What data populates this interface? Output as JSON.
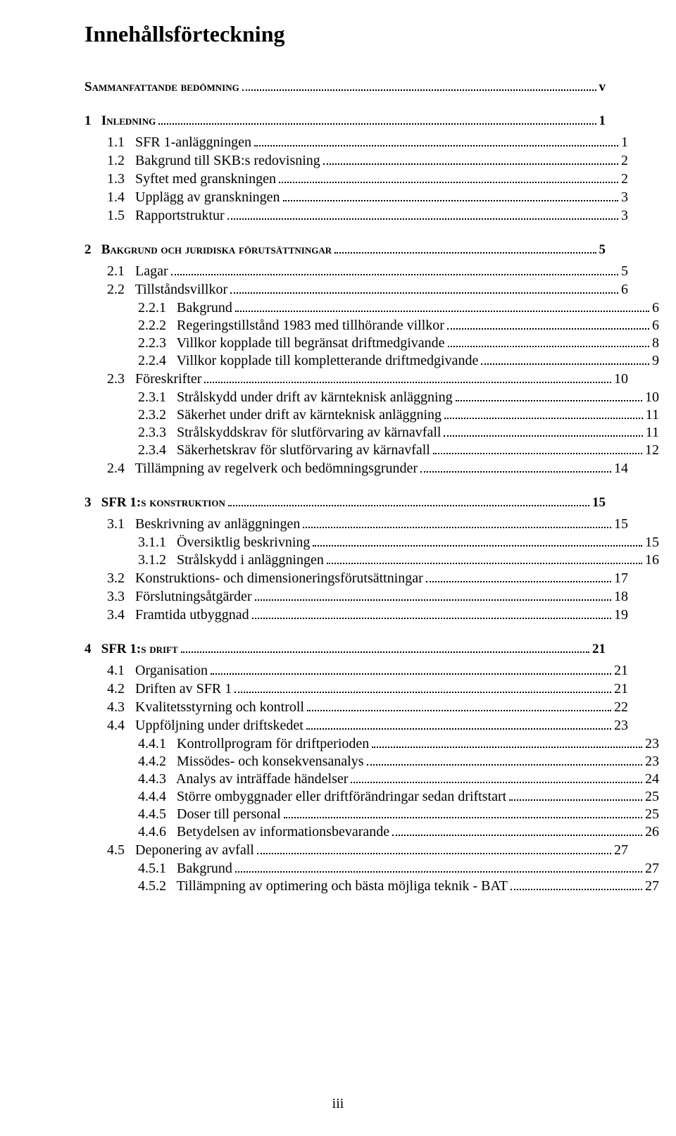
{
  "title": "Innehållsförteckning",
  "page_number_label": "iii",
  "font": {
    "family": "Times New Roman",
    "title_size_pt": 24,
    "lvl0_size_pt": 14,
    "lvl1_size_pt": 15,
    "lvl2_size_pt": 15
  },
  "colors": {
    "text": "#000000",
    "background": "#ffffff",
    "leader": "#000000"
  },
  "entries": [
    {
      "level": 0,
      "number": "",
      "text": "Sammanfattande bedömning",
      "page": "v"
    },
    {
      "level": 0,
      "number": "1",
      "text": "Inledning",
      "page": "1"
    },
    {
      "level": 1,
      "number": "1.1",
      "text": "SFR 1-anläggningen",
      "page": "1"
    },
    {
      "level": 1,
      "number": "1.2",
      "text": "Bakgrund till SKB:s redovisning",
      "page": "2"
    },
    {
      "level": 1,
      "number": "1.3",
      "text": "Syftet med granskningen",
      "page": "2"
    },
    {
      "level": 1,
      "number": "1.4",
      "text": "Upplägg av granskningen",
      "page": "3"
    },
    {
      "level": 1,
      "number": "1.5",
      "text": "Rapportstruktur",
      "page": "3"
    },
    {
      "level": 0,
      "number": "2",
      "text": "Bakgrund och juridiska förutsättningar",
      "page": "5"
    },
    {
      "level": 1,
      "number": "2.1",
      "text": "Lagar",
      "page": "5"
    },
    {
      "level": 1,
      "number": "2.2",
      "text": "Tillståndsvillkor",
      "page": "6"
    },
    {
      "level": 2,
      "number": "2.2.1",
      "text": "Bakgrund",
      "page": "6"
    },
    {
      "level": 2,
      "number": "2.2.2",
      "text": "Regeringstillstånd 1983 med tillhörande villkor",
      "page": "6"
    },
    {
      "level": 2,
      "number": "2.2.3",
      "text": "Villkor kopplade till begränsat driftmedgivande",
      "page": "8"
    },
    {
      "level": 2,
      "number": "2.2.4",
      "text": "Villkor kopplade till kompletterande driftmedgivande",
      "page": "9"
    },
    {
      "level": 1,
      "number": "2.3",
      "text": "Föreskrifter",
      "page": "10"
    },
    {
      "level": 2,
      "number": "2.3.1",
      "text": "Strålskydd under drift av kärnteknisk anläggning",
      "page": "10"
    },
    {
      "level": 2,
      "number": "2.3.2",
      "text": "Säkerhet under drift av kärnteknisk anläggning",
      "page": "11"
    },
    {
      "level": 2,
      "number": "2.3.3",
      "text": "Strålskyddskrav för slutförvaring av kärnavfall",
      "page": "11"
    },
    {
      "level": 2,
      "number": "2.3.4",
      "text": "Säkerhetskrav för slutförvaring av kärnavfall",
      "page": "12"
    },
    {
      "level": 1,
      "number": "2.4",
      "text": "Tillämpning av regelverk och bedömningsgrunder",
      "page": "14"
    },
    {
      "level": 0,
      "number": "3",
      "text": "SFR 1:s konstruktion",
      "page": "15"
    },
    {
      "level": 1,
      "number": "3.1",
      "text": "Beskrivning av anläggningen",
      "page": "15"
    },
    {
      "level": 2,
      "number": "3.1.1",
      "text": "Översiktlig beskrivning",
      "page": "15"
    },
    {
      "level": 2,
      "number": "3.1.2",
      "text": "Strålskydd i anläggningen",
      "page": "16"
    },
    {
      "level": 1,
      "number": "3.2",
      "text": "Konstruktions- och dimensioneringsförutsättningar",
      "page": "17"
    },
    {
      "level": 1,
      "number": "3.3",
      "text": "Förslutningsåtgärder",
      "page": "18"
    },
    {
      "level": 1,
      "number": "3.4",
      "text": "Framtida utbyggnad",
      "page": "19"
    },
    {
      "level": 0,
      "number": "4",
      "text": "SFR 1:s drift",
      "page": "21"
    },
    {
      "level": 1,
      "number": "4.1",
      "text": "Organisation",
      "page": "21"
    },
    {
      "level": 1,
      "number": "4.2",
      "text": "Driften av SFR 1",
      "page": "21"
    },
    {
      "level": 1,
      "number": "4.3",
      "text": "Kvalitetsstyrning och kontroll",
      "page": "22"
    },
    {
      "level": 1,
      "number": "4.4",
      "text": "Uppföljning under driftskedet",
      "page": "23"
    },
    {
      "level": 2,
      "number": "4.4.1",
      "text": "Kontrollprogram för driftperioden",
      "page": "23"
    },
    {
      "level": 2,
      "number": "4.4.2",
      "text": "Missödes- och konsekvensanalys",
      "page": "23"
    },
    {
      "level": 2,
      "number": "4.4.3",
      "text": "Analys av inträffade händelser",
      "page": "24"
    },
    {
      "level": 2,
      "number": "4.4.4",
      "text": "Större ombyggnader eller driftförändringar sedan driftstart",
      "page": "25"
    },
    {
      "level": 2,
      "number": "4.4.5",
      "text": "Doser till personal",
      "page": "25"
    },
    {
      "level": 2,
      "number": "4.4.6",
      "text": "Betydelsen av informationsbevarande",
      "page": "26"
    },
    {
      "level": 1,
      "number": "4.5",
      "text": "Deponering av avfall",
      "page": "27"
    },
    {
      "level": 2,
      "number": "4.5.1",
      "text": "Bakgrund",
      "page": "27"
    },
    {
      "level": 2,
      "number": "4.5.2",
      "text": "Tillämpning av optimering och bästa möjliga teknik - BAT",
      "page": "27"
    }
  ]
}
